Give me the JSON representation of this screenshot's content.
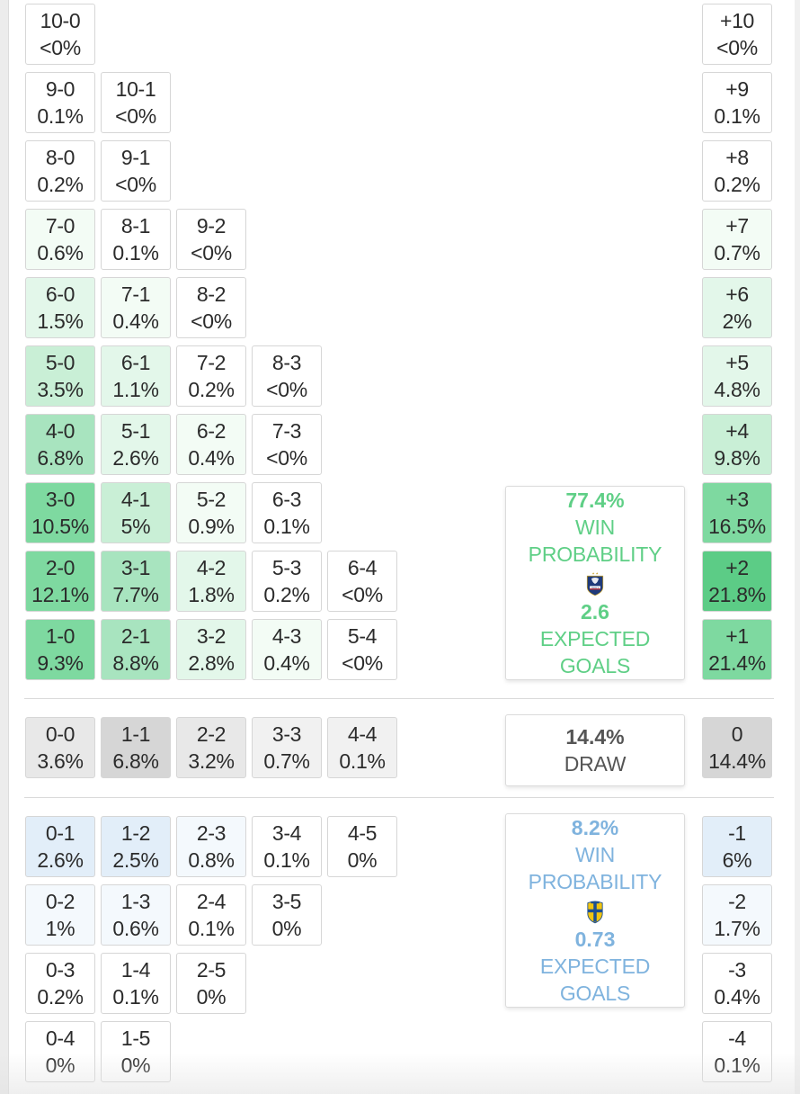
{
  "colors": {
    "team1_accent": "#5fcf86",
    "team2_accent": "#7fb3de",
    "draw_text": "#555555",
    "win_scale": [
      "#ffffff",
      "#f3fcf5",
      "#e3f7ea",
      "#c9efd6",
      "#a8e4bf",
      "#7ed9a0",
      "#5ccc86"
    ],
    "loss_scale": [
      "#ffffff",
      "#f4f9fd",
      "#e2eef9"
    ],
    "draw_scale": [
      "#f1f1f1",
      "#e8e8e8",
      "#d6d6d6"
    ]
  },
  "team1_wins": [
    [
      {
        "score": "10-0",
        "pct": "<0%"
      }
    ],
    [
      {
        "score": "9-0",
        "pct": "0.1%"
      },
      {
        "score": "10-1",
        "pct": "<0%"
      }
    ],
    [
      {
        "score": "8-0",
        "pct": "0.2%"
      },
      {
        "score": "9-1",
        "pct": "<0%"
      }
    ],
    [
      {
        "score": "7-0",
        "pct": "0.6%"
      },
      {
        "score": "8-1",
        "pct": "0.1%"
      },
      {
        "score": "9-2",
        "pct": "<0%"
      }
    ],
    [
      {
        "score": "6-0",
        "pct": "1.5%"
      },
      {
        "score": "7-1",
        "pct": "0.4%"
      },
      {
        "score": "8-2",
        "pct": "<0%"
      }
    ],
    [
      {
        "score": "5-0",
        "pct": "3.5%"
      },
      {
        "score": "6-1",
        "pct": "1.1%"
      },
      {
        "score": "7-2",
        "pct": "0.2%"
      },
      {
        "score": "8-3",
        "pct": "<0%"
      }
    ],
    [
      {
        "score": "4-0",
        "pct": "6.8%"
      },
      {
        "score": "5-1",
        "pct": "2.6%"
      },
      {
        "score": "6-2",
        "pct": "0.4%"
      },
      {
        "score": "7-3",
        "pct": "<0%"
      }
    ],
    [
      {
        "score": "3-0",
        "pct": "10.5%"
      },
      {
        "score": "4-1",
        "pct": "5%"
      },
      {
        "score": "5-2",
        "pct": "0.9%"
      },
      {
        "score": "6-3",
        "pct": "0.1%"
      }
    ],
    [
      {
        "score": "2-0",
        "pct": "12.1%"
      },
      {
        "score": "3-1",
        "pct": "7.7%"
      },
      {
        "score": "4-2",
        "pct": "1.8%"
      },
      {
        "score": "5-3",
        "pct": "0.2%"
      },
      {
        "score": "6-4",
        "pct": "<0%"
      }
    ],
    [
      {
        "score": "1-0",
        "pct": "9.3%"
      },
      {
        "score": "2-1",
        "pct": "8.8%"
      },
      {
        "score": "3-2",
        "pct": "2.8%"
      },
      {
        "score": "4-3",
        "pct": "0.4%"
      },
      {
        "score": "5-4",
        "pct": "<0%"
      }
    ]
  ],
  "team1_margins": [
    {
      "margin": "+10",
      "pct": "<0%"
    },
    {
      "margin": "+9",
      "pct": "0.1%"
    },
    {
      "margin": "+8",
      "pct": "0.2%"
    },
    {
      "margin": "+7",
      "pct": "0.7%"
    },
    {
      "margin": "+6",
      "pct": "2%"
    },
    {
      "margin": "+5",
      "pct": "4.8%"
    },
    {
      "margin": "+4",
      "pct": "9.8%"
    },
    {
      "margin": "+3",
      "pct": "16.5%"
    },
    {
      "margin": "+2",
      "pct": "21.8%"
    },
    {
      "margin": "+1",
      "pct": "21.4%"
    }
  ],
  "draws": [
    {
      "score": "0-0",
      "pct": "3.6%"
    },
    {
      "score": "1-1",
      "pct": "6.8%"
    },
    {
      "score": "2-2",
      "pct": "3.2%"
    },
    {
      "score": "3-3",
      "pct": "0.7%"
    },
    {
      "score": "4-4",
      "pct": "0.1%"
    }
  ],
  "draw_margin": {
    "margin": "0",
    "pct": "14.4%"
  },
  "team2_wins": [
    [
      {
        "score": "0-1",
        "pct": "2.6%"
      },
      {
        "score": "1-2",
        "pct": "2.5%"
      },
      {
        "score": "2-3",
        "pct": "0.8%"
      },
      {
        "score": "3-4",
        "pct": "0.1%"
      },
      {
        "score": "4-5",
        "pct": "0%"
      }
    ],
    [
      {
        "score": "0-2",
        "pct": "1%"
      },
      {
        "score": "1-3",
        "pct": "0.6%"
      },
      {
        "score": "2-4",
        "pct": "0.1%"
      },
      {
        "score": "3-5",
        "pct": "0%"
      }
    ],
    [
      {
        "score": "0-3",
        "pct": "0.2%"
      },
      {
        "score": "1-4",
        "pct": "0.1%"
      },
      {
        "score": "2-5",
        "pct": "0%"
      }
    ],
    [
      {
        "score": "0-4",
        "pct": "0%"
      },
      {
        "score": "1-5",
        "pct": "0%"
      }
    ]
  ],
  "team2_margins": [
    {
      "margin": "-1",
      "pct": "6%"
    },
    {
      "margin": "-2",
      "pct": "1.7%"
    },
    {
      "margin": "-3",
      "pct": "0.4%"
    },
    {
      "margin": "-4",
      "pct": "0.1%"
    }
  ],
  "team1_summary": {
    "win_pct": "77.4%",
    "win_label": "WIN PROBABILITY",
    "crest_icon": "france-crest-icon",
    "xg": "2.6",
    "xg_label": "EXPECTED GOALS"
  },
  "draw_summary": {
    "pct": "14.4%",
    "label": "DRAW"
  },
  "team2_summary": {
    "win_pct": "8.2%",
    "win_label": "WIN PROBABILITY",
    "crest_icon": "sweden-crest-icon",
    "xg": "0.73",
    "xg_label": "EXPECTED GOALS"
  }
}
